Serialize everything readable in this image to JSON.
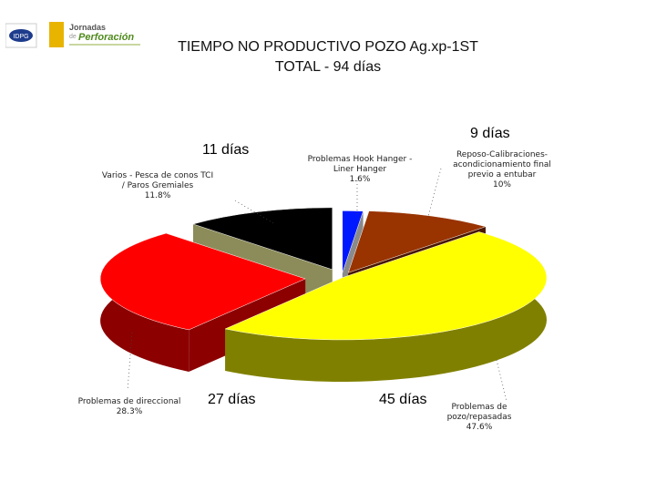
{
  "header": {
    "logo_left_text": "IDPG",
    "logo_right_line1": "Jornadas",
    "logo_right_line2": "de",
    "logo_right_line3": "Perforación"
  },
  "title_line1": "TIEMPO NO PRODUCTIVO POZO Ag.xp-1ST",
  "title_line2": "TOTAL - 94 días",
  "chart_data": {
    "type": "pie",
    "title": "TIEMPO NO PRODUCTIVO POZO Ag.xp-1ST",
    "subtitle": "TOTAL - 94 días",
    "slices": [
      {
        "label_1": "Problemas Hook Hanger -",
        "label_2": "Liner Hanger",
        "pct_text": "1.6%",
        "value": 1.6,
        "days_text": "",
        "color": "#0018ff",
        "side_color": "#8a8a8a"
      },
      {
        "label_1": "Reposo-Calibraciones-",
        "label_2": "acondicionamiento final",
        "label_3": "previo a entubar",
        "pct_text": "10%",
        "value": 10,
        "days_text": "9 días",
        "color": "#993300",
        "side_color": "#4a1700"
      },
      {
        "label_1": "Problemas de",
        "label_2": "pozo/repasadas",
        "pct_text": "47.6%",
        "value": 47.6,
        "days_text": "45 días",
        "color": "#ffff00",
        "side_color": "#808000"
      },
      {
        "label_1": "Problemas de direccional",
        "pct_text": "28.3%",
        "value": 28.3,
        "days_text": "27 días",
        "color": "#ff0000",
        "side_color": "#8c0000"
      },
      {
        "label_1": "Varios - Pesca de conos TCI",
        "label_2": "/ Paros Gremiales",
        "pct_text": "11.8%",
        "value": 11.8,
        "days_text": "11 días",
        "color": "#000000",
        "side_color": "#8c8c5a"
      }
    ]
  }
}
